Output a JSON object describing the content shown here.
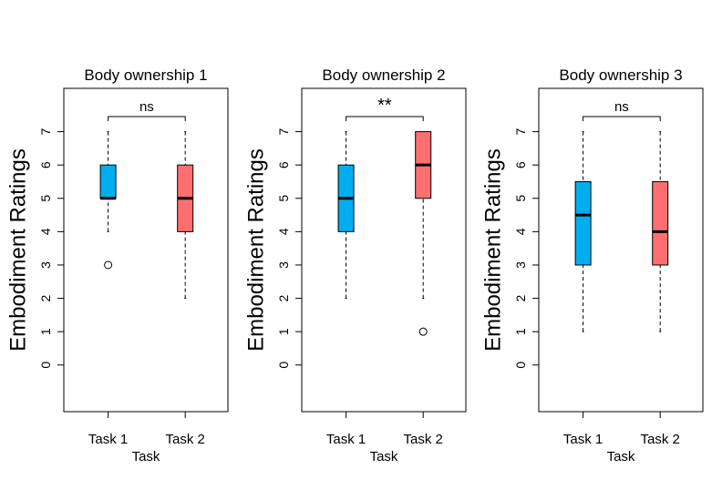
{
  "chart_data": [
    {
      "type": "boxplot",
      "title": "Body ownership 1",
      "xlabel": "Task",
      "ylabel": "Embodiment Ratings",
      "ylim": [
        -1.4,
        8.3
      ],
      "yticks": [
        "0",
        "1",
        "2",
        "3",
        "4",
        "5",
        "6",
        "7"
      ],
      "categories": [
        "Task 1",
        "Task 2"
      ],
      "colors": [
        "#00AEEF",
        "#FF6F6F"
      ],
      "boxes": [
        {
          "whisker_low": 4,
          "q1": 5,
          "median": 5,
          "q3": 6,
          "whisker_high": 7,
          "outliers": [
            3
          ]
        },
        {
          "whisker_low": 2,
          "q1": 4,
          "median": 5,
          "q3": 6,
          "whisker_high": 7,
          "outliers": []
        }
      ],
      "significance": "ns"
    },
    {
      "type": "boxplot",
      "title": "Body ownership 2",
      "xlabel": "Task",
      "ylabel": "Embodiment Ratings",
      "ylim": [
        -1.4,
        8.3
      ],
      "yticks": [
        "0",
        "1",
        "2",
        "3",
        "4",
        "5",
        "6",
        "7"
      ],
      "categories": [
        "Task 1",
        "Task 2"
      ],
      "colors": [
        "#00AEEF",
        "#FF6F6F"
      ],
      "boxes": [
        {
          "whisker_low": 2,
          "q1": 4,
          "median": 5,
          "q3": 6,
          "whisker_high": 7,
          "outliers": []
        },
        {
          "whisker_low": 2,
          "q1": 5,
          "median": 6,
          "q3": 7,
          "whisker_high": 7,
          "outliers": [
            1
          ]
        }
      ],
      "significance": "**"
    },
    {
      "type": "boxplot",
      "title": "Body ownership 3",
      "xlabel": "Task",
      "ylabel": "Embodiment Ratings",
      "ylim": [
        -1.4,
        8.3
      ],
      "yticks": [
        "0",
        "1",
        "2",
        "3",
        "4",
        "5",
        "6",
        "7"
      ],
      "categories": [
        "Task 1",
        "Task 2"
      ],
      "colors": [
        "#00AEEF",
        "#FF6F6F"
      ],
      "boxes": [
        {
          "whisker_low": 1,
          "q1": 3,
          "median": 4.5,
          "q3": 5.5,
          "whisker_high": 7,
          "outliers": []
        },
        {
          "whisker_low": 1,
          "q1": 3,
          "median": 4,
          "q3": 5.5,
          "whisker_high": 7,
          "outliers": []
        }
      ],
      "significance": "ns"
    }
  ]
}
